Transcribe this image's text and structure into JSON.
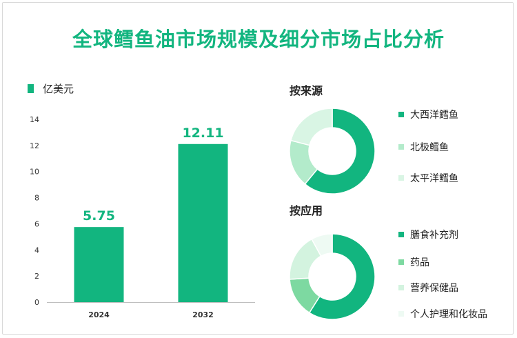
{
  "title": "全球鳕鱼油市场规模及细分市场占比分析",
  "unit_legend": {
    "label": "亿美元",
    "color": "#12b57f"
  },
  "chart_data": [
    {
      "type": "bar",
      "categories": [
        "2024",
        "2032"
      ],
      "values": [
        5.75,
        12.11
      ],
      "data_labels": [
        "5.75",
        "12.11"
      ],
      "ylim": [
        0,
        14
      ],
      "yticks": [
        0,
        2,
        4,
        6,
        8,
        10,
        12,
        14
      ],
      "grid": false,
      "color": "#12b57f"
    },
    {
      "type": "pie",
      "title": "按来源",
      "labels": [
        "大西洋鳕鱼",
        "北极鳕鱼",
        "太平洋鳕鱼"
      ],
      "values": [
        61,
        18,
        21
      ],
      "colors": [
        "#12b57f",
        "#b3ebcb",
        "#d9f5e4"
      ],
      "donut": true
    },
    {
      "type": "pie",
      "title": "按应用",
      "labels": [
        "膳食补充剂",
        "药品",
        "营养保健品",
        "个人护理和化妆品"
      ],
      "values": [
        59,
        15,
        18,
        8
      ],
      "colors": [
        "#12b57f",
        "#7dd9a1",
        "#d3f3df",
        "#eefaf3"
      ],
      "donut": true
    }
  ]
}
